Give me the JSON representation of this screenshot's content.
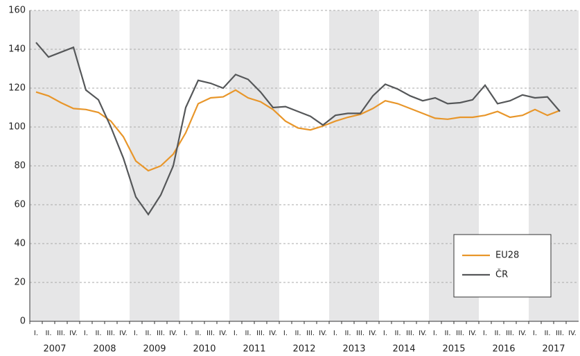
{
  "chart_data": {
    "type": "line",
    "categories": [
      "I.",
      "II.",
      "III.",
      "IV.",
      "I.",
      "II.",
      "III.",
      "IV.",
      "I.",
      "II.",
      "III.",
      "IV.",
      "I.",
      "II.",
      "III.",
      "IV.",
      "I.",
      "II.",
      "III.",
      "IV.",
      "I.",
      "II.",
      "III.",
      "IV.",
      "I.",
      "II.",
      "III.",
      "IV.",
      "I.",
      "II.",
      "III.",
      "IV.",
      "I.",
      "II.",
      "III.",
      "IV.",
      "I.",
      "II.",
      "III.",
      "IV.",
      "I.",
      "II.",
      "III.",
      "IV."
    ],
    "years": [
      "2007",
      "2008",
      "2009",
      "2010",
      "2011",
      "2012",
      "2013",
      "2014",
      "2015",
      "2016",
      "2017"
    ],
    "series": [
      {
        "name": "EU28",
        "color": "#e8962a",
        "values": [
          118,
          116,
          112.5,
          109.5,
          109,
          107.5,
          103,
          95,
          82.5,
          77.5,
          80,
          86,
          97,
          112,
          115,
          115.5,
          119,
          115,
          113,
          109,
          103,
          99.5,
          98.5,
          100.5,
          103,
          105,
          106.5,
          109.5,
          113.5,
          112,
          109.5,
          107,
          104.5,
          104,
          105,
          105,
          106,
          108,
          105,
          106,
          109,
          106,
          108.5,
          null
        ]
      },
      {
        "name": "ČR",
        "color": "#555759",
        "values": [
          143.5,
          136,
          138.5,
          141,
          119,
          114,
          100,
          84,
          64,
          55,
          65,
          80,
          110,
          124,
          122.5,
          120,
          127,
          124.5,
          118,
          110,
          110.5,
          108,
          105.5,
          101,
          106,
          107,
          107,
          116,
          122,
          119.5,
          116,
          113.5,
          115,
          112,
          112.5,
          114,
          121.5,
          112,
          113.5,
          116.5,
          115,
          115.5,
          108,
          null
        ]
      }
    ],
    "ylim": [
      0,
      160
    ],
    "yticks": [
      0,
      20,
      40,
      60,
      80,
      100,
      120,
      140,
      160
    ],
    "grid": true,
    "legend": "lower right"
  }
}
